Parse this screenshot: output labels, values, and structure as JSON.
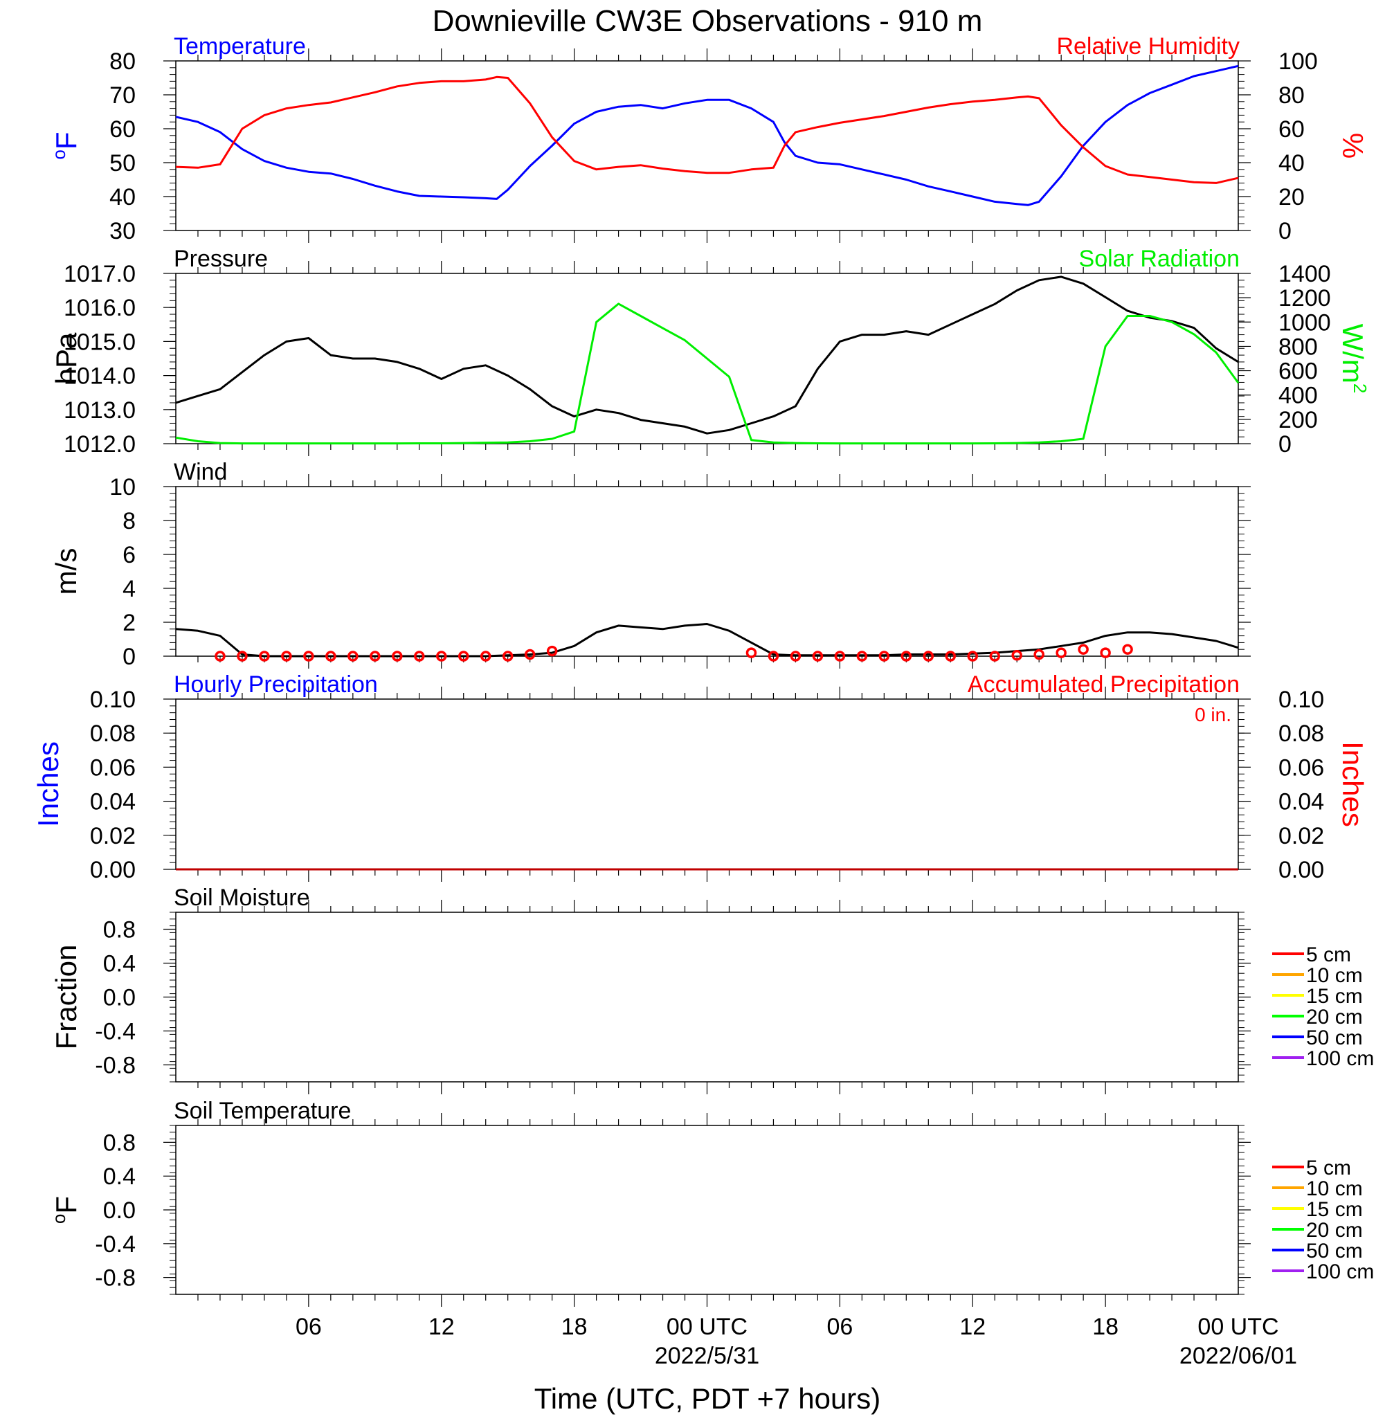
{
  "title": "Downieville CW3E Observations - 910 m",
  "xlabel": "Time (UTC, PDT +7 hours)",
  "x_ticks": [
    {
      "hour": 6,
      "label": "06",
      "date": ""
    },
    {
      "hour": 12,
      "label": "12",
      "date": ""
    },
    {
      "hour": 18,
      "label": "18",
      "date": ""
    },
    {
      "hour": 24,
      "label": "00 UTC",
      "date": "2022/5/31"
    },
    {
      "hour": 30,
      "label": "06",
      "date": ""
    },
    {
      "hour": 36,
      "label": "12",
      "date": ""
    },
    {
      "hour": 42,
      "label": "18",
      "date": ""
    },
    {
      "hour": 48,
      "label": "00 UTC",
      "date": "2022/06/01"
    }
  ],
  "colors": {
    "blue": "#0000ff",
    "red": "#ff0000",
    "green": "#00ee00",
    "black": "#000000",
    "darkred": "#c00000"
  },
  "chart_data": [
    {
      "id": "temp_rh",
      "type": "line",
      "left_title": "Temperature",
      "right_title": "Relative Humidity",
      "left_label": "°F",
      "right_label": "%",
      "left_ylim": [
        30,
        80
      ],
      "right_ylim": [
        0,
        100
      ],
      "left_ticks": [
        "30",
        "40",
        "50",
        "60",
        "70",
        "80"
      ],
      "right_ticks": [
        "0",
        "20",
        "40",
        "60",
        "80",
        "100"
      ],
      "x": [
        0,
        1,
        2,
        3,
        4,
        5,
        6,
        7,
        8,
        9,
        10,
        11,
        12,
        13,
        14,
        14.5,
        15,
        16,
        17,
        18,
        19,
        20,
        21,
        22,
        23,
        24,
        25,
        26,
        27,
        27.5,
        28,
        29,
        30,
        31,
        32,
        33,
        34,
        35,
        36,
        37,
        38,
        38.5,
        39,
        40,
        41,
        42,
        43,
        44,
        45,
        46,
        47,
        48
      ],
      "series": [
        {
          "name": "Temperature",
          "axis": "left",
          "color": "#0000ff",
          "values": [
            63.5,
            62,
            59,
            54,
            50.5,
            48.5,
            47.3,
            46.8,
            45.2,
            43.2,
            41.5,
            40.2,
            40,
            39.8,
            39.5,
            39.3,
            42,
            49,
            55,
            61.5,
            65,
            66.5,
            67,
            66,
            67.5,
            68.5,
            68.5,
            66,
            62,
            56,
            52,
            50,
            49.5,
            48,
            46.5,
            45,
            43,
            41.5,
            40,
            38.5,
            37.8,
            37.5,
            38.5,
            46,
            55,
            62,
            67,
            70.5,
            73,
            75.5,
            77,
            78.5
          ]
        },
        {
          "name": "Relative Humidity",
          "axis": "right",
          "color": "#ff0000",
          "values": [
            37.5,
            37,
            39,
            60,
            68,
            72,
            74,
            75.5,
            78.5,
            81.5,
            85,
            87,
            88,
            88,
            89,
            90.5,
            90,
            75,
            55,
            41,
            36,
            37.5,
            38.5,
            36.5,
            35,
            34,
            34,
            36,
            37,
            50,
            58,
            61,
            63.5,
            65.5,
            67.5,
            70,
            72.5,
            74.5,
            76,
            77,
            78.5,
            79,
            78,
            62,
            49,
            38,
            33,
            31.5,
            30,
            28.5,
            28,
            31
          ]
        }
      ]
    },
    {
      "id": "pressure_solar",
      "type": "line",
      "left_title": "Pressure",
      "right_title": "Solar Radiation",
      "left_label": "hPa",
      "right_label": "W/m",
      "right_label_sup": "2",
      "left_ylim": [
        1012,
        1017
      ],
      "right_ylim": [
        0,
        1400
      ],
      "left_ticks": [
        "1012.0",
        "1013.0",
        "1014.0",
        "1015.0",
        "1016.0",
        "1017.0"
      ],
      "right_ticks": [
        "0",
        "200",
        "400",
        "600",
        "800",
        "1000",
        "1200",
        "1400"
      ],
      "x": [
        0,
        1,
        2,
        3,
        4,
        5,
        6,
        7,
        8,
        9,
        10,
        11,
        12,
        13,
        14,
        15,
        16,
        17,
        18,
        19,
        20,
        21,
        22,
        23,
        24,
        25,
        26,
        27,
        28,
        29,
        30,
        31,
        32,
        33,
        34,
        35,
        36,
        37,
        38,
        39,
        40,
        41,
        42,
        43,
        44,
        45,
        46,
        47,
        48
      ],
      "series": [
        {
          "name": "Pressure",
          "axis": "left",
          "color": "#000000",
          "values": [
            1013.2,
            1013.4,
            1013.6,
            1014.1,
            1014.6,
            1015.0,
            1015.1,
            1014.6,
            1014.5,
            1014.5,
            1014.4,
            1014.2,
            1013.9,
            1014.2,
            1014.3,
            1014.0,
            1013.6,
            1013.1,
            1012.8,
            1013.0,
            1012.9,
            1012.7,
            1012.6,
            1012.5,
            1012.3,
            1012.4,
            1012.6,
            1012.8,
            1013.1,
            1014.2,
            1015.0,
            1015.2,
            1015.2,
            1015.3,
            1015.2,
            1015.5,
            1015.8,
            1016.1,
            1016.5,
            1016.8,
            1016.9,
            1016.7,
            1016.3,
            1015.9,
            1015.7,
            1015.6,
            1015.4,
            1014.8,
            1014.4
          ]
        },
        {
          "name": "Solar Radiation",
          "axis": "right",
          "color": "#00ee00",
          "values": [
            50,
            20,
            5,
            2,
            2,
            2,
            2,
            2,
            2,
            2,
            2,
            3,
            3,
            5,
            8,
            10,
            20,
            40,
            100,
            1000,
            1150,
            1050,
            950,
            850,
            700,
            550,
            30,
            10,
            5,
            3,
            2,
            2,
            2,
            2,
            2,
            2,
            2,
            3,
            5,
            10,
            20,
            40,
            800,
            1050,
            1050,
            1000,
            900,
            750,
            500
          ]
        }
      ]
    },
    {
      "id": "wind",
      "type": "line",
      "left_title": "Wind",
      "left_label": "m/s",
      "left_ylim": [
        0,
        10
      ],
      "left_ticks": [
        "0",
        "2",
        "4",
        "6",
        "8",
        "10"
      ],
      "x": [
        0,
        1,
        2,
        3,
        4,
        5,
        6,
        7,
        8,
        9,
        10,
        11,
        12,
        13,
        14,
        15,
        16,
        17,
        18,
        19,
        20,
        21,
        22,
        23,
        24,
        25,
        26,
        27,
        28,
        29,
        30,
        31,
        32,
        33,
        34,
        35,
        36,
        37,
        38,
        39,
        40,
        41,
        42,
        43,
        44,
        45,
        46,
        47,
        48
      ],
      "series": [
        {
          "name": "Wind speed",
          "axis": "left",
          "color": "#000000",
          "values": [
            1.6,
            1.5,
            1.2,
            0.1,
            0,
            0,
            0,
            0,
            0,
            0,
            0,
            0,
            0,
            0,
            0,
            0.05,
            0.1,
            0.2,
            0.6,
            1.4,
            1.8,
            1.7,
            1.6,
            1.8,
            1.9,
            1.5,
            0.8,
            0.1,
            0.05,
            0.05,
            0.05,
            0.05,
            0.05,
            0.1,
            0.1,
            0.1,
            0.15,
            0.2,
            0.3,
            0.4,
            0.6,
            0.8,
            1.2,
            1.4,
            1.4,
            1.3,
            1.1,
            0.9,
            0.5
          ]
        }
      ],
      "calm_markers_hours": [
        2,
        3,
        4,
        5,
        6,
        7,
        8,
        9,
        10,
        11,
        12,
        13,
        14,
        15,
        16,
        17,
        26,
        27,
        28,
        29,
        30,
        31,
        32,
        33,
        34,
        35,
        36,
        37,
        38,
        39,
        40,
        41,
        42,
        43
      ],
      "calm_markers_values": [
        0,
        0,
        0,
        0,
        0,
        0,
        0,
        0,
        0,
        0,
        0,
        0,
        0,
        0,
        0.1,
        0.3,
        0.2,
        0,
        0,
        0,
        0,
        0,
        0,
        0,
        0,
        0,
        0,
        0,
        0.05,
        0.1,
        0.2,
        0.4,
        0.2,
        0.4
      ]
    },
    {
      "id": "precip",
      "type": "line",
      "left_title": "Hourly Precipitation",
      "right_title": "Accumulated Precipitation",
      "annotation": "0 in.",
      "left_label": "Inches",
      "right_label": "Inches",
      "left_ylim": [
        0,
        0.1
      ],
      "right_ylim": [
        0,
        0.1
      ],
      "left_ticks": [
        "0.00",
        "0.02",
        "0.04",
        "0.06",
        "0.08",
        "0.10"
      ],
      "right_ticks": [
        "0.00",
        "0.02",
        "0.04",
        "0.06",
        "0.08",
        "0.10"
      ],
      "x": [
        0,
        48
      ],
      "series": [
        {
          "name": "Hourly Precipitation",
          "axis": "left",
          "color": "#0000ff",
          "values": [
            0,
            0
          ]
        },
        {
          "name": "Accumulated Precipitation",
          "axis": "right",
          "color": "#c00000",
          "values": [
            0,
            0
          ]
        }
      ]
    },
    {
      "id": "soil_moisture",
      "type": "line",
      "left_title": "Soil Moisture",
      "left_label": "Fraction",
      "left_ylim": [
        -1,
        1
      ],
      "left_ticks": [
        "-0.8",
        "-0.4",
        "0.0",
        "0.4",
        "0.8"
      ],
      "legend": [
        {
          "name": "5 cm",
          "color": "#ff0000"
        },
        {
          "name": "10 cm",
          "color": "#ffa500"
        },
        {
          "name": "15 cm",
          "color": "#ffff00"
        },
        {
          "name": "20 cm",
          "color": "#00ff00"
        },
        {
          "name": "50 cm",
          "color": "#0000ff"
        },
        {
          "name": "100 cm",
          "color": "#a020f0"
        }
      ],
      "series": []
    },
    {
      "id": "soil_temp",
      "type": "line",
      "left_title": "Soil Temperature",
      "left_label": "°F",
      "left_ylim": [
        -1,
        1
      ],
      "left_ticks": [
        "-0.8",
        "-0.4",
        "0.0",
        "0.4",
        "0.8"
      ],
      "legend": [
        {
          "name": "5 cm",
          "color": "#ff0000"
        },
        {
          "name": "10 cm",
          "color": "#ffa500"
        },
        {
          "name": "15 cm",
          "color": "#ffff00"
        },
        {
          "name": "20 cm",
          "color": "#00ff00"
        },
        {
          "name": "50 cm",
          "color": "#0000ff"
        },
        {
          "name": "100 cm",
          "color": "#a020f0"
        }
      ],
      "series": []
    }
  ]
}
